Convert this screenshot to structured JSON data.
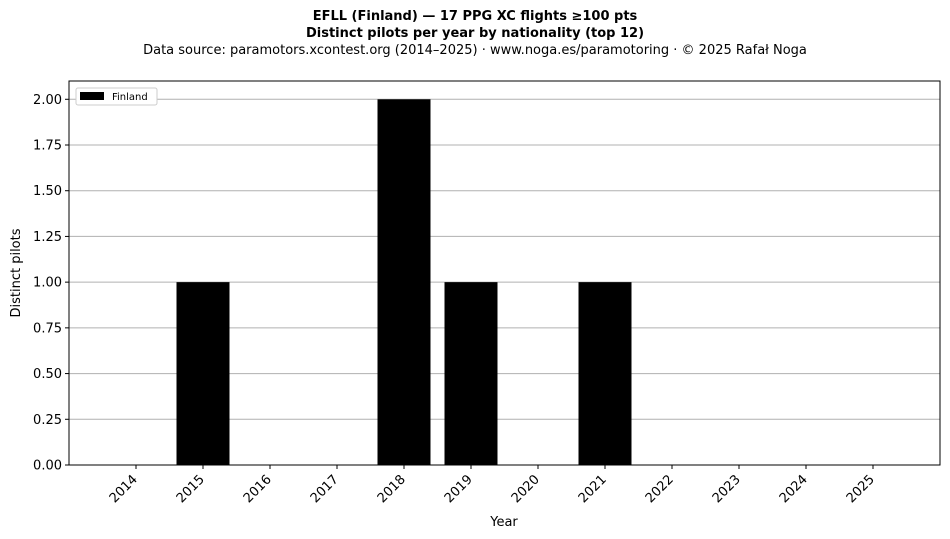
{
  "chart_data": {
    "type": "bar",
    "title": "EFLL (Finland)  —  17 PPG XC flights ≥100 pts",
    "subtitle": "Distinct pilots per year by nationality (top 12)",
    "source_line": "Data source: paramotors.xcontest.org (2014–2025)  ·  www.noga.es/paramotoring  ·  © 2025 Rafał Noga",
    "xlabel": "Year",
    "ylabel": "Distinct pilots",
    "categories": [
      "2014",
      "2015",
      "2016",
      "2017",
      "2018",
      "2019",
      "2020",
      "2021",
      "2022",
      "2023",
      "2024",
      "2025"
    ],
    "series": [
      {
        "name": "Finland",
        "color": "#000000",
        "values": [
          0,
          1,
          0,
          0,
          2,
          1,
          0,
          1,
          0,
          0,
          0,
          0
        ]
      }
    ],
    "ylim": [
      0,
      2.1
    ],
    "yticks": [
      0,
      0.25,
      0.5,
      0.75,
      1.0,
      1.25,
      1.5,
      1.75,
      2.0
    ],
    "ytick_labels": [
      "0.00",
      "0.25",
      "0.50",
      "0.75",
      "1.00",
      "1.25",
      "1.50",
      "1.75",
      "2.00"
    ],
    "grid": "y",
    "grid_color": "#b0b0b0",
    "legend_position": "top-left"
  }
}
